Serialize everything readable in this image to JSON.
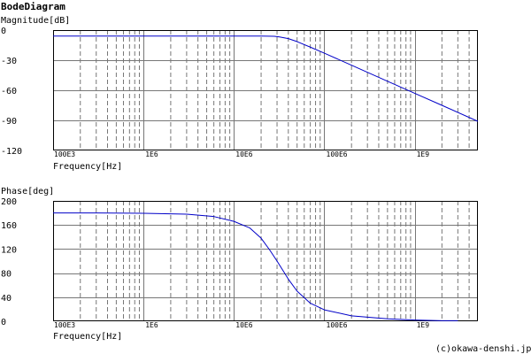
{
  "page": {
    "title": "BodeDiagram",
    "credit": "(c)okawa-denshi.jp"
  },
  "colors": {
    "curve": "#0000c8",
    "frame": "#000000",
    "major_grid": "#777777",
    "minor_grid": "#777777"
  },
  "chart_data": [
    {
      "type": "line",
      "title": "",
      "ylabel": "Magnitude[dB]",
      "xlabel": "Frequency[Hz]",
      "x_scale": "log",
      "xlim": [
        100000,
        5000000000
      ],
      "ylim": [
        -120,
        0
      ],
      "yticks": [
        0,
        -30,
        -60,
        -90,
        -120
      ],
      "yticklabels": [
        "0",
        "-30",
        "-60",
        "-90",
        "-120"
      ],
      "xticks": [
        100000,
        1000000,
        10000000,
        100000000,
        1000000000
      ],
      "xticklabels": [
        "100E3",
        "1E6",
        "10E6",
        "100E6",
        "1E9"
      ],
      "grid": true,
      "series": [
        {
          "x": [
            100000,
            1000000,
            10000000,
            20000000,
            28000000,
            32000000,
            40000000,
            50000000,
            70000000,
            100000000,
            200000000,
            500000000,
            1000000000,
            2000000000,
            5000000000
          ],
          "y": [
            -6,
            -6,
            -6,
            -6,
            -6.2,
            -6.8,
            -8.5,
            -11.5,
            -17,
            -23,
            -35,
            -51,
            -63,
            -75,
            -91
          ]
        }
      ]
    },
    {
      "type": "line",
      "title": "",
      "ylabel": "Phase[deg]",
      "xlabel": "Frequency[Hz]",
      "x_scale": "log",
      "xlim": [
        100000,
        5000000000
      ],
      "ylim": [
        0,
        200
      ],
      "yticks": [
        200,
        160,
        120,
        80,
        40,
        0
      ],
      "yticklabels": [
        "200",
        "160",
        "120",
        "80",
        "40",
        "0"
      ],
      "xticks": [
        100000,
        1000000,
        10000000,
        100000000,
        1000000000
      ],
      "xticklabels": [
        "100E3",
        "1E6",
        "10E6",
        "100E6",
        "1E9"
      ],
      "grid": true,
      "series": [
        {
          "x": [
            100000,
            300000,
            1000000,
            3000000,
            6000000,
            10000000,
            15000000,
            20000000,
            25000000,
            30000000,
            35000000,
            40000000,
            50000000,
            70000000,
            100000000,
            200000000,
            500000000,
            1000000000,
            2000000000,
            3000000000
          ],
          "y": [
            180,
            180,
            179.5,
            178,
            174,
            166,
            155,
            138,
            118,
            100,
            84,
            70,
            50,
            30,
            19,
            9,
            4,
            2,
            1,
            1
          ]
        }
      ]
    }
  ]
}
